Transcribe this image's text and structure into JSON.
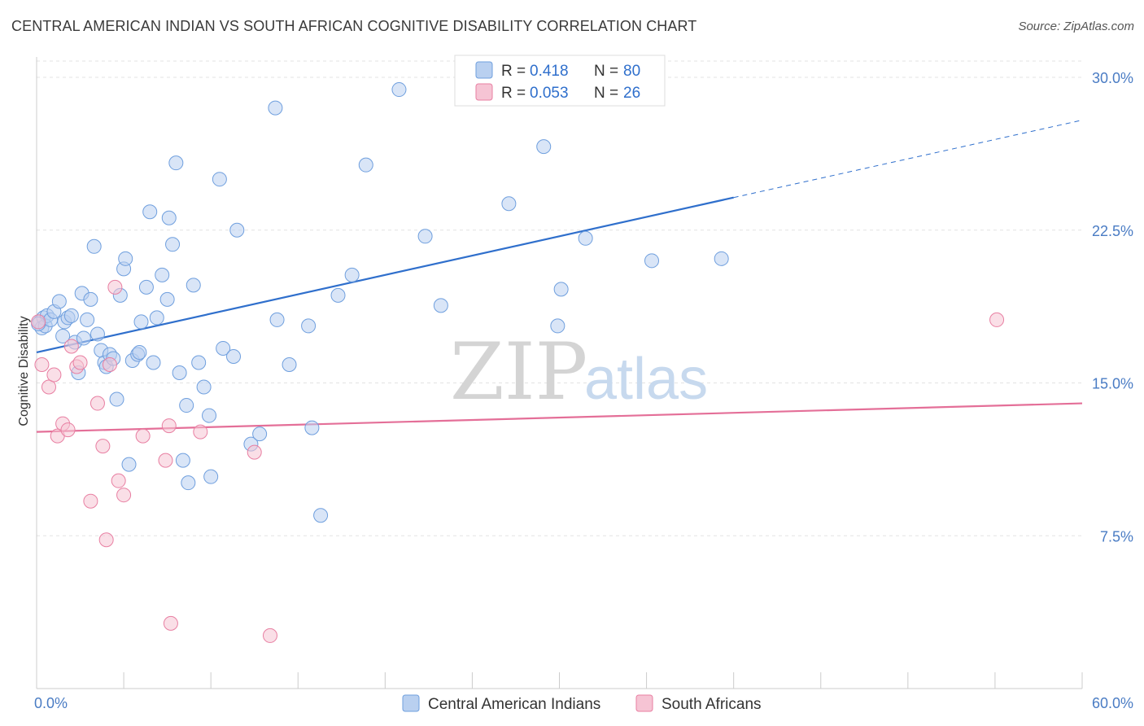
{
  "title": "CENTRAL AMERICAN INDIAN VS SOUTH AFRICAN COGNITIVE DISABILITY CORRELATION CHART",
  "source": "Source: ZipAtlas.com",
  "watermark": {
    "zip": "ZIP",
    "atlas": "atlas"
  },
  "colors": {
    "blue": "#6f9fde",
    "blue_fill": "#b9d0f0",
    "blue_line": "#2f6fcc",
    "pink": "#e87fa2",
    "pink_fill": "#f6c4d4",
    "pink_line": "#e46f98",
    "tick": "#4a7cc4",
    "grid": "#e3e3e3"
  },
  "legend": {
    "rows": [
      {
        "r_label": "R =",
        "r_value": "0.418",
        "n_label": "N =",
        "n_value": "80"
      },
      {
        "r_label": "R =",
        "r_value": "0.053",
        "n_label": "N =",
        "n_value": "26"
      }
    ]
  },
  "chart_data": {
    "type": "scatter",
    "title": "CENTRAL AMERICAN INDIAN VS SOUTH AFRICAN COGNITIVE DISABILITY CORRELATION CHART",
    "xlabel": "",
    "ylabel": "Cognitive Disability",
    "xlim": [
      0,
      60
    ],
    "ylim": [
      0,
      31
    ],
    "x_tick_labels": [
      "0.0%",
      "60.0%"
    ],
    "y_ticks": [
      7.5,
      15.0,
      22.5,
      30.0
    ],
    "y_tick_labels": [
      "7.5%",
      "15.0%",
      "22.5%",
      "30.0%"
    ],
    "grid": true,
    "legend_position": "top-center",
    "series": [
      {
        "name": "Central American Indians",
        "color": "#6f9fde",
        "trend": {
          "x": [
            0,
            40
          ],
          "y": [
            16.5,
            24.1
          ],
          "dashed_extension": {
            "x": [
              40,
              60
            ],
            "y": [
              24.1,
              27.9
            ]
          }
        },
        "points": [
          [
            0.2,
            18.0
          ],
          [
            0.3,
            17.7
          ],
          [
            0.4,
            18.2
          ],
          [
            0.5,
            17.8
          ],
          [
            0.6,
            18.3
          ],
          [
            0.8,
            18.1
          ],
          [
            1.0,
            18.5
          ],
          [
            1.3,
            19.0
          ],
          [
            1.5,
            17.3
          ],
          [
            1.6,
            18.0
          ],
          [
            1.8,
            18.2
          ],
          [
            2.0,
            18.3
          ],
          [
            2.2,
            17.0
          ],
          [
            2.4,
            15.5
          ],
          [
            2.6,
            19.4
          ],
          [
            2.7,
            17.2
          ],
          [
            2.9,
            18.1
          ],
          [
            3.1,
            19.1
          ],
          [
            3.3,
            21.7
          ],
          [
            3.5,
            17.4
          ],
          [
            3.7,
            16.6
          ],
          [
            3.9,
            16.0
          ],
          [
            4.0,
            15.8
          ],
          [
            4.2,
            16.4
          ],
          [
            4.4,
            16.2
          ],
          [
            4.6,
            14.2
          ],
          [
            4.8,
            19.3
          ],
          [
            5.0,
            20.6
          ],
          [
            5.1,
            21.1
          ],
          [
            5.3,
            11.0
          ],
          [
            5.5,
            16.1
          ],
          [
            5.8,
            16.4
          ],
          [
            5.9,
            16.5
          ],
          [
            6.0,
            18.0
          ],
          [
            6.3,
            19.7
          ],
          [
            6.5,
            23.4
          ],
          [
            6.7,
            16.0
          ],
          [
            6.9,
            18.2
          ],
          [
            7.2,
            20.3
          ],
          [
            7.5,
            19.1
          ],
          [
            7.6,
            23.1
          ],
          [
            7.8,
            21.8
          ],
          [
            8.0,
            25.8
          ],
          [
            8.2,
            15.5
          ],
          [
            8.4,
            11.2
          ],
          [
            8.6,
            13.9
          ],
          [
            8.7,
            10.1
          ],
          [
            9.0,
            19.8
          ],
          [
            9.3,
            16.0
          ],
          [
            9.6,
            14.8
          ],
          [
            9.9,
            13.4
          ],
          [
            10.0,
            10.4
          ],
          [
            10.5,
            25.0
          ],
          [
            10.7,
            16.7
          ],
          [
            11.3,
            16.3
          ],
          [
            11.5,
            22.5
          ],
          [
            12.3,
            12.0
          ],
          [
            12.8,
            12.5
          ],
          [
            13.7,
            28.5
          ],
          [
            13.8,
            18.1
          ],
          [
            14.5,
            15.9
          ],
          [
            15.6,
            17.8
          ],
          [
            15.8,
            12.8
          ],
          [
            16.3,
            8.5
          ],
          [
            17.3,
            19.3
          ],
          [
            18.1,
            20.3
          ],
          [
            18.9,
            25.7
          ],
          [
            22.3,
            22.2
          ],
          [
            23.2,
            18.8
          ],
          [
            27.1,
            23.8
          ],
          [
            28.4,
            29.3
          ],
          [
            29.1,
            26.6
          ],
          [
            29.9,
            17.8
          ],
          [
            30.1,
            19.6
          ],
          [
            31.5,
            22.1
          ],
          [
            35.3,
            21.0
          ],
          [
            39.3,
            21.1
          ],
          [
            33.2,
            29.8
          ],
          [
            20.8,
            29.4
          ],
          [
            0.1,
            17.9
          ]
        ]
      },
      {
        "name": "South Africans",
        "color": "#e87fa2",
        "trend": {
          "x": [
            0,
            60
          ],
          "y": [
            12.6,
            14.0
          ]
        },
        "points": [
          [
            0.1,
            18.0
          ],
          [
            0.3,
            15.9
          ],
          [
            0.7,
            14.8
          ],
          [
            1.0,
            15.4
          ],
          [
            1.2,
            12.4
          ],
          [
            1.5,
            13.0
          ],
          [
            1.8,
            12.7
          ],
          [
            2.0,
            16.8
          ],
          [
            2.3,
            15.8
          ],
          [
            2.5,
            16.0
          ],
          [
            3.1,
            9.2
          ],
          [
            3.5,
            14.0
          ],
          [
            3.8,
            11.9
          ],
          [
            4.0,
            7.3
          ],
          [
            4.2,
            15.9
          ],
          [
            4.5,
            19.7
          ],
          [
            4.7,
            10.2
          ],
          [
            5.0,
            9.5
          ],
          [
            6.1,
            12.4
          ],
          [
            7.4,
            11.2
          ],
          [
            7.6,
            12.9
          ],
          [
            7.7,
            3.2
          ],
          [
            9.4,
            12.6
          ],
          [
            12.5,
            11.6
          ],
          [
            13.4,
            2.6
          ],
          [
            55.1,
            18.1
          ]
        ]
      }
    ]
  }
}
